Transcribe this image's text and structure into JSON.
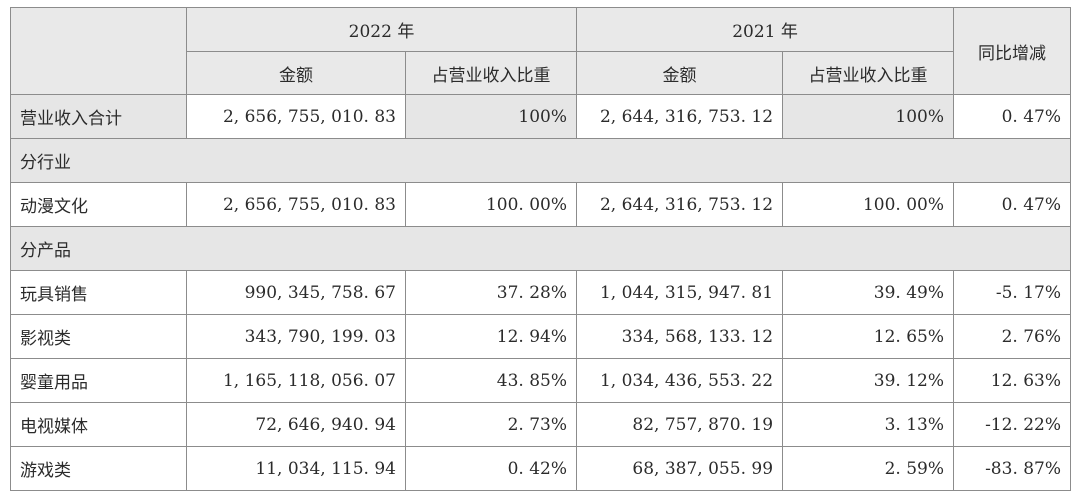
{
  "header": {
    "year_2022": "2022 年",
    "year_2021": "2021 年",
    "yoy": "同比增减",
    "amount": "金额",
    "ratio": "占营业收入比重"
  },
  "rows": [
    {
      "label": "营业收入合计",
      "amt2022": "2, 656, 755, 010. 83",
      "pct2022": "100%",
      "amt2021": "2, 644, 316, 753. 12",
      "pct2021": "100%",
      "yoy": "0. 47%"
    },
    {
      "label": "分行业"
    },
    {
      "label": "动漫文化",
      "amt2022": "2, 656, 755, 010. 83",
      "pct2022": "100. 00%",
      "amt2021": "2, 644, 316, 753. 12",
      "pct2021": "100. 00%",
      "yoy": "0. 47%"
    },
    {
      "label": "分产品"
    },
    {
      "label": "玩具销售",
      "amt2022": "990, 345, 758. 67",
      "pct2022": "37. 28%",
      "amt2021": "1, 044, 315, 947. 81",
      "pct2021": "39. 49%",
      "yoy": "-5. 17%"
    },
    {
      "label": "影视类",
      "amt2022": "343, 790, 199. 03",
      "pct2022": "12. 94%",
      "amt2021": "334, 568, 133. 12",
      "pct2021": "12. 65%",
      "yoy": "2. 76%"
    },
    {
      "label": "婴童用品",
      "amt2022": "1, 165, 118, 056. 07",
      "pct2022": "43. 85%",
      "amt2021": "1, 034, 436, 553. 22",
      "pct2021": "39. 12%",
      "yoy": "12. 63%"
    },
    {
      "label": "电视媒体",
      "amt2022": "72, 646, 940. 94",
      "pct2022": "2. 73%",
      "amt2021": "82, 757, 870. 19",
      "pct2021": "3. 13%",
      "yoy": "-12. 22%"
    },
    {
      "label": "游戏类",
      "amt2022": "11, 034, 115. 94",
      "pct2022": "0. 42%",
      "amt2021": "68, 387, 055. 99",
      "pct2021": "2. 59%",
      "yoy": "-83. 87%"
    }
  ]
}
